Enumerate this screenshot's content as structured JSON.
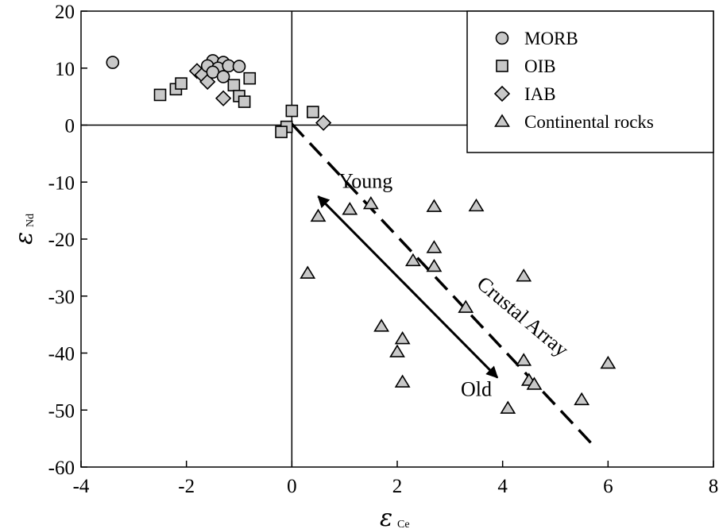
{
  "chart_data": {
    "type": "scatter",
    "xlim": [
      -4,
      8
    ],
    "ylim": [
      -60,
      20
    ],
    "x_ticks": [
      -4,
      -2,
      0,
      2,
      4,
      6,
      8
    ],
    "y_ticks": [
      20,
      10,
      0,
      -10,
      -20,
      -30,
      -40,
      -50,
      -60
    ],
    "xlabel": {
      "symbol": "ε",
      "subscript": "Ce"
    },
    "ylabel": {
      "symbol": "ε",
      "subscript": "Nd"
    },
    "grid": false,
    "legend": {
      "placement": "top-right"
    },
    "series": [
      {
        "name": "MORB",
        "marker": "circle",
        "color": "#c8c8c8",
        "points": [
          [
            -3.4,
            11.0
          ],
          [
            -1.5,
            11.3
          ],
          [
            -1.3,
            11.0
          ],
          [
            -1.6,
            10.4
          ],
          [
            -1.4,
            10.0
          ],
          [
            -1.2,
            10.4
          ],
          [
            -1.0,
            10.3
          ],
          [
            -1.5,
            9.3
          ],
          [
            -1.3,
            8.5
          ]
        ]
      },
      {
        "name": "OIB",
        "marker": "square",
        "color": "#c8c8c8",
        "points": [
          [
            -2.5,
            5.3
          ],
          [
            -2.2,
            6.3
          ],
          [
            -2.1,
            7.3
          ],
          [
            -1.1,
            7.0
          ],
          [
            -0.8,
            8.2
          ],
          [
            -1.0,
            5.1
          ],
          [
            -0.9,
            4.1
          ],
          [
            0.0,
            2.5
          ],
          [
            0.4,
            2.3
          ],
          [
            -0.1,
            -0.3
          ],
          [
            -0.2,
            -1.2
          ]
        ]
      },
      {
        "name": "IAB",
        "marker": "diamond",
        "color": "#c8c8c8",
        "points": [
          [
            -1.8,
            9.5
          ],
          [
            -1.7,
            8.8
          ],
          [
            -1.6,
            7.6
          ],
          [
            -1.3,
            4.7
          ],
          [
            0.6,
            0.4
          ]
        ]
      },
      {
        "name": "Continental rocks",
        "marker": "triangle",
        "color": "#c8c8c8",
        "points": [
          [
            1.5,
            -13.8
          ],
          [
            1.1,
            -14.8
          ],
          [
            0.5,
            -16.0
          ],
          [
            2.7,
            -14.3
          ],
          [
            3.5,
            -14.2
          ],
          [
            2.7,
            -21.5
          ],
          [
            2.3,
            -23.8
          ],
          [
            2.7,
            -24.8
          ],
          [
            0.3,
            -26.0
          ],
          [
            4.4,
            -26.5
          ],
          [
            3.3,
            -32.0
          ],
          [
            1.7,
            -35.3
          ],
          [
            2.1,
            -37.5
          ],
          [
            2.0,
            -39.8
          ],
          [
            4.4,
            -41.3
          ],
          [
            6.0,
            -41.8
          ],
          [
            2.1,
            -45.1
          ],
          [
            4.5,
            -44.8
          ],
          [
            4.6,
            -45.5
          ],
          [
            5.5,
            -48.2
          ],
          [
            4.1,
            -49.7
          ]
        ]
      }
    ],
    "annotations": [
      {
        "text": "Young",
        "x": 1.4,
        "y": -11
      },
      {
        "text": "Old",
        "x": 3.5,
        "y": -47.5
      },
      {
        "text": "Crustal Array",
        "x": 4.3,
        "y": -34.5,
        "angle": 40
      }
    ],
    "lines": [
      {
        "kind": "dashed",
        "from": [
          0.0,
          0.2
        ],
        "to": [
          5.7,
          -56.0
        ]
      },
      {
        "kind": "double-arrow",
        "from": [
          0.5,
          -12.5
        ],
        "to": [
          3.9,
          -44.3
        ]
      }
    ]
  }
}
